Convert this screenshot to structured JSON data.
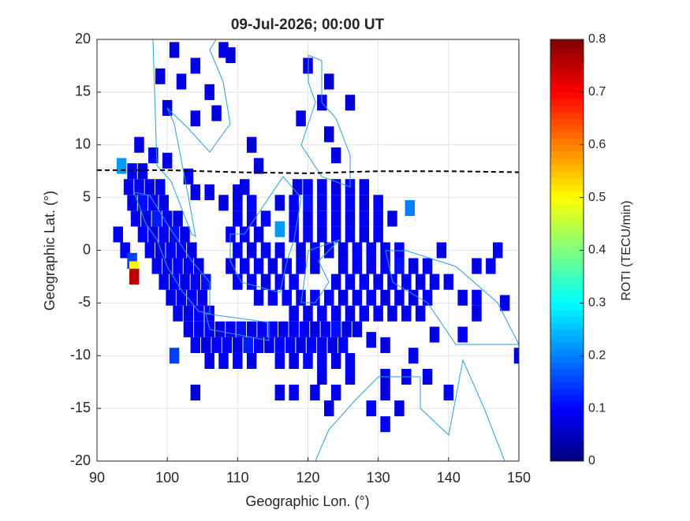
{
  "chart_data": {
    "type": "map",
    "title": "09-Jul-2026; 00:00 UT",
    "xlabel": "Geographic Lon. (°)",
    "ylabel": "Geographic Lat. (°)",
    "colorbar_label": "ROTI (TECU/min)",
    "xlim": [
      90,
      150
    ],
    "xticks": [
      90,
      100,
      110,
      120,
      130,
      140,
      150
    ],
    "ylim": [
      -20,
      20
    ],
    "yticks": [
      -20,
      -15,
      -10,
      -5,
      0,
      5,
      10,
      15,
      20
    ],
    "clim": [
      0,
      0.8
    ],
    "cticks": [
      0,
      0.1,
      0.2,
      0.3,
      0.4,
      0.5,
      0.6,
      0.7,
      0.8
    ],
    "grid": true,
    "equator": {
      "lon": [
        90,
        100,
        110,
        120,
        130,
        140,
        150
      ],
      "lat": [
        7.6,
        7.6,
        7.4,
        7.3,
        7.5,
        7.5,
        7.4
      ]
    },
    "cells": [
      [
        93.5,
        8,
        0.22
      ],
      [
        95,
        7.5,
        0.1
      ],
      [
        96.5,
        7.5,
        0.08
      ],
      [
        94.5,
        6,
        0.09
      ],
      [
        96,
        6,
        0.1
      ],
      [
        97.5,
        6,
        0.08
      ],
      [
        99,
        6,
        0.09
      ],
      [
        95,
        4.5,
        0.08
      ],
      [
        96.5,
        4.5,
        0.11
      ],
      [
        98,
        4.5,
        0.09
      ],
      [
        99.5,
        4.5,
        0.08
      ],
      [
        95.5,
        3,
        0.09
      ],
      [
        97,
        3,
        0.08
      ],
      [
        98.5,
        3,
        0.12
      ],
      [
        100,
        3,
        0.09
      ],
      [
        101.5,
        3,
        0.08
      ],
      [
        93,
        1.5,
        0.09
      ],
      [
        96.5,
        1.5,
        0.1
      ],
      [
        98,
        1.5,
        0.08
      ],
      [
        99.5,
        1.5,
        0.09
      ],
      [
        101,
        1.5,
        0.11
      ],
      [
        102.5,
        1.5,
        0.08
      ],
      [
        94,
        0,
        0.1
      ],
      [
        97.5,
        0,
        0.09
      ],
      [
        99,
        0,
        0.08
      ],
      [
        100.5,
        0,
        0.1
      ],
      [
        102,
        0,
        0.09
      ],
      [
        103.5,
        0,
        0.08
      ],
      [
        95,
        -1,
        0.15
      ],
      [
        95.3,
        -1.8,
        0.5
      ],
      [
        95.3,
        -2.5,
        0.75
      ],
      [
        98.5,
        -1.5,
        0.09
      ],
      [
        100,
        -1.5,
        0.08
      ],
      [
        101.5,
        -1.5,
        0.1
      ],
      [
        103,
        -1.5,
        0.09
      ],
      [
        104.5,
        -1.5,
        0.08
      ],
      [
        99.5,
        -3,
        0.09
      ],
      [
        101,
        -3,
        0.1
      ],
      [
        102.5,
        -3,
        0.08
      ],
      [
        104,
        -3,
        0.09
      ],
      [
        105.5,
        -3,
        0.11
      ],
      [
        100.5,
        -4.5,
        0.08
      ],
      [
        102,
        -4.5,
        0.09
      ],
      [
        103.5,
        -4.5,
        0.1
      ],
      [
        105,
        -4.5,
        0.08
      ],
      [
        101.5,
        -6,
        0.09
      ],
      [
        103,
        -6,
        0.08
      ],
      [
        104.5,
        -6,
        0.1
      ],
      [
        106,
        -6,
        0.09
      ],
      [
        103,
        -7.5,
        0.08
      ],
      [
        104.5,
        -7.5,
        0.09
      ],
      [
        106,
        -7.5,
        0.1
      ],
      [
        107.5,
        -7.5,
        0.08
      ],
      [
        109,
        -7.5,
        0.09
      ],
      [
        110.5,
        -7.5,
        0.11
      ],
      [
        112,
        -7.5,
        0.08
      ],
      [
        113.5,
        -7.5,
        0.09
      ],
      [
        115,
        -7.5,
        0.1
      ],
      [
        116.5,
        -7.5,
        0.08
      ],
      [
        118,
        -7.5,
        0.09
      ],
      [
        119.5,
        -7.5,
        0.1
      ],
      [
        121,
        -7.5,
        0.08
      ],
      [
        122.5,
        -7.5,
        0.09
      ],
      [
        124,
        -7.5,
        0.11
      ],
      [
        125.5,
        -7.5,
        0.08
      ],
      [
        127,
        -7.5,
        0.09
      ],
      [
        104,
        -9,
        0.09
      ],
      [
        105.5,
        -9,
        0.08
      ],
      [
        107,
        -9,
        0.1
      ],
      [
        108.5,
        -9,
        0.09
      ],
      [
        110,
        -9,
        0.08
      ],
      [
        111.5,
        -9,
        0.12
      ],
      [
        113,
        -9,
        0.09
      ],
      [
        114.5,
        -9,
        0.08
      ],
      [
        116,
        -9,
        0.1
      ],
      [
        117.5,
        -9,
        0.09
      ],
      [
        119,
        -9,
        0.08
      ],
      [
        120.5,
        -9,
        0.1
      ],
      [
        122,
        -9,
        0.09
      ],
      [
        123.5,
        -9,
        0.08
      ],
      [
        125,
        -9,
        0.1
      ],
      [
        101,
        -10,
        0.15
      ],
      [
        106,
        -10.5,
        0.08
      ],
      [
        108,
        -10.5,
        0.09
      ],
      [
        110,
        -10.5,
        0.1
      ],
      [
        112,
        -10.5,
        0.08
      ],
      [
        116,
        -10.5,
        0.09
      ],
      [
        118,
        -10.5,
        0.08
      ],
      [
        120,
        -10.5,
        0.1
      ],
      [
        122,
        -10.5,
        0.09
      ],
      [
        124,
        -10.5,
        0.08
      ],
      [
        126,
        -10.5,
        0.09
      ],
      [
        111,
        6,
        0.09
      ],
      [
        118.5,
        6,
        0.08
      ],
      [
        120,
        6,
        0.1
      ],
      [
        122,
        6,
        0.09
      ],
      [
        124,
        6,
        0.08
      ],
      [
        126,
        6,
        0.1
      ],
      [
        128,
        6,
        0.09
      ],
      [
        108,
        4.5,
        0.08
      ],
      [
        110,
        4.5,
        0.09
      ],
      [
        112,
        4.5,
        0.1
      ],
      [
        116,
        4.5,
        0.08
      ],
      [
        118,
        4.5,
        0.09
      ],
      [
        120,
        4.5,
        0.11
      ],
      [
        122,
        4.5,
        0.08
      ],
      [
        124,
        4.5,
        0.09
      ],
      [
        126,
        4.5,
        0.1
      ],
      [
        128,
        4.5,
        0.08
      ],
      [
        130,
        4.5,
        0.09
      ],
      [
        134.5,
        4,
        0.2
      ],
      [
        110,
        3,
        0.09
      ],
      [
        112,
        3,
        0.08
      ],
      [
        114,
        3,
        0.1
      ],
      [
        116,
        2,
        0.22
      ],
      [
        118,
        3,
        0.09
      ],
      [
        120,
        3,
        0.08
      ],
      [
        122,
        3,
        0.1
      ],
      [
        124,
        3,
        0.09
      ],
      [
        126,
        3,
        0.08
      ],
      [
        128,
        3,
        0.1
      ],
      [
        130,
        3,
        0.09
      ],
      [
        132,
        3,
        0.08
      ],
      [
        109,
        1.5,
        0.1
      ],
      [
        111,
        1.5,
        0.09
      ],
      [
        113,
        1.5,
        0.08
      ],
      [
        118,
        1.5,
        0.1
      ],
      [
        120,
        1.5,
        0.09
      ],
      [
        122,
        1.5,
        0.08
      ],
      [
        124,
        1.5,
        0.1
      ],
      [
        126,
        1.5,
        0.09
      ],
      [
        128,
        1.5,
        0.08
      ],
      [
        130,
        1.5,
        0.1
      ],
      [
        110,
        0,
        0.09
      ],
      [
        112,
        0,
        0.08
      ],
      [
        114,
        0,
        0.1
      ],
      [
        116,
        0,
        0.09
      ],
      [
        119,
        0,
        0.08
      ],
      [
        121,
        0,
        0.1
      ],
      [
        123,
        0,
        0.09
      ],
      [
        125,
        0,
        0.08
      ],
      [
        127,
        0,
        0.1
      ],
      [
        129,
        0,
        0.09
      ],
      [
        131,
        0,
        0.08
      ],
      [
        133,
        0,
        0.1
      ],
      [
        139,
        0,
        0.08
      ],
      [
        147,
        0,
        0.09
      ],
      [
        109,
        -1.5,
        0.08
      ],
      [
        111,
        -1.5,
        0.09
      ],
      [
        113,
        -1.5,
        0.1
      ],
      [
        115,
        -1.5,
        0.08
      ],
      [
        117,
        -1.5,
        0.09
      ],
      [
        119,
        -1.5,
        0.1
      ],
      [
        121,
        -1.5,
        0.08
      ],
      [
        125,
        -1.5,
        0.09
      ],
      [
        127,
        -1.5,
        0.1
      ],
      [
        129,
        -1.5,
        0.08
      ],
      [
        131,
        -1.5,
        0.09
      ],
      [
        133,
        -1.5,
        0.11
      ],
      [
        135,
        -1.5,
        0.08
      ],
      [
        137,
        -1.5,
        0.09
      ],
      [
        144,
        -1.5,
        0.08
      ],
      [
        146,
        -1.5,
        0.09
      ],
      [
        110,
        -3,
        0.09
      ],
      [
        112,
        -3,
        0.1
      ],
      [
        114,
        -3,
        0.08
      ],
      [
        116,
        -3,
        0.09
      ],
      [
        118,
        -3,
        0.1
      ],
      [
        124,
        -3,
        0.08
      ],
      [
        126,
        -3,
        0.09
      ],
      [
        128,
        -3,
        0.1
      ],
      [
        130,
        -3,
        0.08
      ],
      [
        132,
        -3,
        0.09
      ],
      [
        134,
        -3,
        0.1
      ],
      [
        136,
        -3,
        0.08
      ],
      [
        138,
        -3,
        0.09
      ],
      [
        140,
        -3,
        0.08
      ],
      [
        113,
        -4.5,
        0.08
      ],
      [
        115,
        -4.5,
        0.09
      ],
      [
        117,
        -4.5,
        0.1
      ],
      [
        119,
        -4.5,
        0.08
      ],
      [
        121,
        -4.5,
        0.09
      ],
      [
        123,
        -4.5,
        0.1
      ],
      [
        125,
        -4.5,
        0.08
      ],
      [
        127,
        -4.5,
        0.09
      ],
      [
        129,
        -4.5,
        0.1
      ],
      [
        131,
        -4.5,
        0.08
      ],
      [
        133,
        -4.5,
        0.09
      ],
      [
        135,
        -4.5,
        0.08
      ],
      [
        137,
        -4.5,
        0.1
      ],
      [
        142,
        -4.5,
        0.08
      ],
      [
        144,
        -4.5,
        0.09
      ],
      [
        118,
        -6,
        0.09
      ],
      [
        120,
        -6,
        0.08
      ],
      [
        122,
        -6,
        0.1
      ],
      [
        124,
        -6,
        0.09
      ],
      [
        126,
        -6,
        0.08
      ],
      [
        128,
        -6,
        0.1
      ],
      [
        130,
        -6,
        0.09
      ],
      [
        132,
        -6,
        0.08
      ],
      [
        134,
        -6,
        0.09
      ],
      [
        136,
        -6,
        0.08
      ],
      [
        148,
        -5,
        0.08
      ],
      [
        129,
        -8.5,
        0.09
      ],
      [
        131,
        -9,
        0.08
      ],
      [
        135,
        -10,
        0.09
      ],
      [
        138,
        -8,
        0.08
      ],
      [
        142,
        -8,
        0.09
      ],
      [
        144,
        -6,
        0.08
      ],
      [
        150,
        -10,
        0.07
      ],
      [
        122,
        -12,
        0.08
      ],
      [
        126,
        -12,
        0.09
      ],
      [
        131,
        -12,
        0.08
      ],
      [
        134,
        -12,
        0.09
      ],
      [
        137,
        -12,
        0.08
      ],
      [
        104,
        -13.5,
        0.07
      ],
      [
        116,
        -13.5,
        0.08
      ],
      [
        118,
        -13.5,
        0.09
      ],
      [
        121,
        -13.5,
        0.08
      ],
      [
        124,
        -13.5,
        0.09
      ],
      [
        131,
        -13.5,
        0.08
      ],
      [
        140,
        -13.5,
        0.09
      ],
      [
        123,
        -15,
        0.08
      ],
      [
        129,
        -15,
        0.09
      ],
      [
        133,
        -15,
        0.08
      ],
      [
        131,
        -16.5,
        0.09
      ],
      [
        101,
        19,
        0.07
      ],
      [
        104,
        17.5,
        0.08
      ],
      [
        99,
        16.5,
        0.07
      ],
      [
        102,
        16,
        0.08
      ],
      [
        100,
        13.5,
        0.07
      ],
      [
        104,
        12.5,
        0.08
      ],
      [
        109,
        18.5,
        0.07
      ],
      [
        108,
        19,
        0.08
      ],
      [
        107,
        13,
        0.07
      ],
      [
        106,
        15,
        0.08
      ],
      [
        112,
        10,
        0.07
      ],
      [
        113,
        8,
        0.08
      ],
      [
        120,
        17.5,
        0.07
      ],
      [
        122,
        14,
        0.08
      ],
      [
        123,
        16,
        0.07
      ],
      [
        119,
        12.5,
        0.08
      ],
      [
        123,
        11,
        0.07
      ],
      [
        124,
        9,
        0.08
      ],
      [
        126,
        14,
        0.07
      ],
      [
        96,
        10,
        0.08
      ],
      [
        98,
        9,
        0.09
      ],
      [
        100,
        8.5,
        0.08
      ],
      [
        103,
        7,
        0.09
      ],
      [
        104,
        5.5,
        0.08
      ],
      [
        106,
        5.5,
        0.09
      ],
      [
        110,
        5.5,
        0.08
      ]
    ]
  }
}
